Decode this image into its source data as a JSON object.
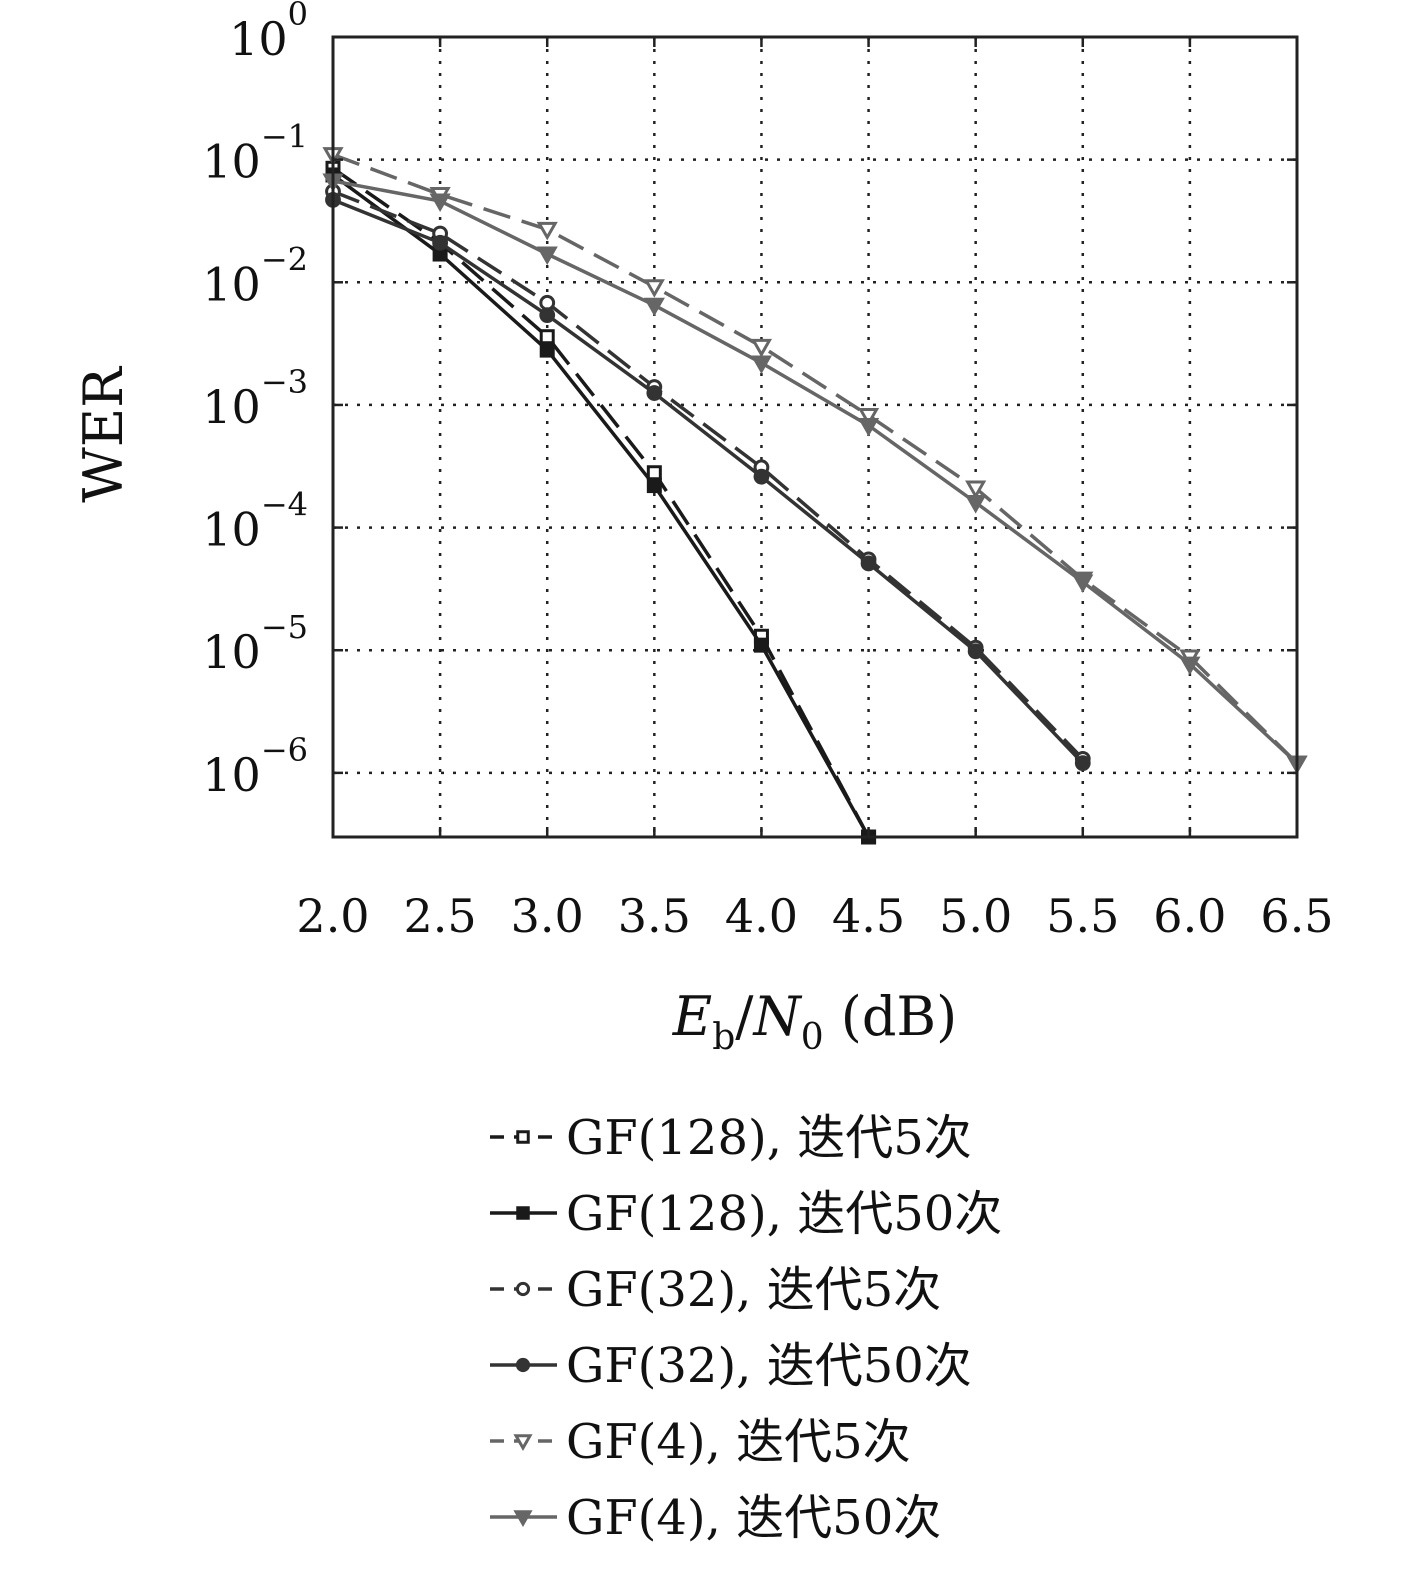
{
  "chart_data": {
    "type": "line",
    "xlabel": "Eb/N0 (dB)",
    "ylabel": "WER",
    "x_tick_labels": [
      "2.0",
      "2.5",
      "3.0",
      "3.5",
      "4.0",
      "4.5",
      "5.0",
      "5.5",
      "6.0",
      "6.5"
    ],
    "y_tick_labels": [
      {
        "base": "10",
        "exp": "0",
        "value": 1
      },
      {
        "base": "10",
        "exp": "−1",
        "value": 0.1
      },
      {
        "base": "10",
        "exp": "−2",
        "value": 0.01
      },
      {
        "base": "10",
        "exp": "−3",
        "value": 0.001
      },
      {
        "base": "10",
        "exp": "−4",
        "value": 0.0001
      },
      {
        "base": "10",
        "exp": "−5",
        "value": 1e-05
      },
      {
        "base": "10",
        "exp": "−6",
        "value": 1e-06
      }
    ],
    "xlim": [
      2.0,
      6.5
    ],
    "ylim": [
      3e-07,
      1
    ],
    "yscale": "log",
    "grid": true,
    "legend_position": "below",
    "series": [
      {
        "name": "GF(128), 迭代5次",
        "line": "dashed",
        "marker": "square-open",
        "color": "#1a1a1a",
        "x": [
          2.0,
          2.5,
          3.0,
          3.5,
          4.0,
          4.5
        ],
        "y": [
          0.085,
          0.021,
          0.0036,
          0.00028,
          1.3e-05,
          3e-07
        ]
      },
      {
        "name": "GF(128), 迭代50次",
        "line": "solid",
        "marker": "square-filled",
        "color": "#1a1a1a",
        "x": [
          2.0,
          2.5,
          3.0,
          3.5,
          4.0,
          4.5
        ],
        "y": [
          0.075,
          0.017,
          0.0028,
          0.00022,
          1.1e-05,
          3e-07
        ]
      },
      {
        "name": "GF(32), 迭代5次",
        "line": "dashed",
        "marker": "circle-open",
        "color": "#333333",
        "x": [
          2.0,
          2.5,
          3.0,
          3.5,
          4.0,
          4.5,
          5.0,
          5.5
        ],
        "y": [
          0.055,
          0.025,
          0.0068,
          0.0014,
          0.00031,
          5.5e-05,
          1.05e-05,
          1.3e-06
        ]
      },
      {
        "name": "GF(32), 迭代50次",
        "line": "solid",
        "marker": "circle-filled",
        "color": "#333333",
        "x": [
          2.0,
          2.5,
          3.0,
          3.5,
          4.0,
          4.5,
          5.0,
          5.5
        ],
        "y": [
          0.047,
          0.021,
          0.0054,
          0.00125,
          0.00026,
          5.1e-05,
          9.8e-06,
          1.2e-06
        ]
      },
      {
        "name": "GF(4), 迭代5次",
        "line": "dashed",
        "marker": "triangle-open",
        "color": "#666666",
        "x": [
          2.0,
          2.5,
          3.0,
          3.5,
          4.0,
          4.5,
          5.0,
          5.5,
          6.0,
          6.5
        ],
        "y": [
          0.11,
          0.052,
          0.027,
          0.0092,
          0.003,
          0.00082,
          0.00021,
          3.8e-05,
          8.8e-06,
          1.2e-06
        ]
      },
      {
        "name": "GF(4), 迭代50次",
        "line": "solid",
        "marker": "triangle-filled",
        "color": "#666666",
        "x": [
          2.0,
          2.5,
          3.0,
          3.5,
          4.0,
          4.5,
          5.0,
          5.5,
          6.0,
          6.5
        ],
        "y": [
          0.067,
          0.046,
          0.017,
          0.0065,
          0.0022,
          0.00068,
          0.00016,
          3.6e-05,
          7.7e-06,
          1.2e-06
        ]
      }
    ]
  }
}
